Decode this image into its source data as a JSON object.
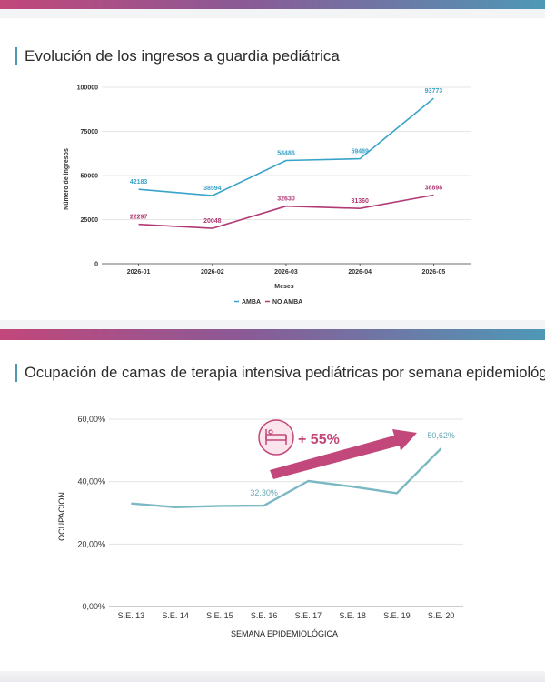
{
  "colors": {
    "amba": "#3aa3c9",
    "no_amba": "#b23a74",
    "ocupacion": "#7ab9c3",
    "accent": "#c2477a"
  },
  "chart1": {
    "title": "Evolución de los ingresos a guardia pediátrica",
    "chart_data": {
      "type": "line",
      "categories": [
        "2026-01",
        "2026-02",
        "2026-03",
        "2026-04",
        "2026-05"
      ],
      "series": [
        {
          "name": "AMBA",
          "values": [
            42183,
            38594,
            58486,
            59489,
            93773
          ],
          "labels": [
            "42183",
            "38594",
            "58486",
            "59489",
            "93773"
          ]
        },
        {
          "name": "NO AMBA",
          "values": [
            22297,
            20048,
            32630,
            31360,
            38898
          ],
          "labels": [
            "22297",
            "20048",
            "32630",
            "31360",
            "38898"
          ]
        }
      ],
      "xlabel": "Meses",
      "ylabel": "Número de ingresos",
      "ylim": [
        0,
        100000
      ],
      "yticks": [
        0,
        25000,
        50000,
        75000,
        100000
      ],
      "ytick_labels": [
        "0",
        "25000",
        "50000",
        "75000",
        "100000"
      ],
      "legend": [
        {
          "text": "AMBA"
        },
        {
          "text": "NO AMBA"
        }
      ],
      "legend_position": "bottom",
      "grid": true
    }
  },
  "chart2": {
    "title": "Ocupación de camas de terapia intensiva pediátricas por semana epidemiológica",
    "chart_data": {
      "type": "line",
      "categories": [
        "S.E. 13",
        "S.E. 14",
        "S.E. 15",
        "S.E. 16",
        "S.E. 17",
        "S.E. 18",
        "S.E. 19",
        "S.E. 20"
      ],
      "series": [
        {
          "values": [
            33.0,
            31.8,
            32.2,
            32.3,
            40.2,
            38.4,
            36.3,
            50.62
          ]
        }
      ],
      "data_labels": [
        {
          "index": 3,
          "text": "32,30%"
        },
        {
          "index": 7,
          "text": "50,62%"
        }
      ],
      "xlabel": "SEMANA EPIDEMIOLÓGICA",
      "ylabel": "OCUPACION",
      "ylim": [
        0,
        60
      ],
      "yticks": [
        0,
        20,
        40,
        60
      ],
      "ytick_labels": [
        "0,00%",
        "20,00%",
        "40,00%",
        "60,00%"
      ],
      "grid": true,
      "annotation": {
        "text": "+ 55%",
        "icon": "bed-icon"
      }
    }
  }
}
